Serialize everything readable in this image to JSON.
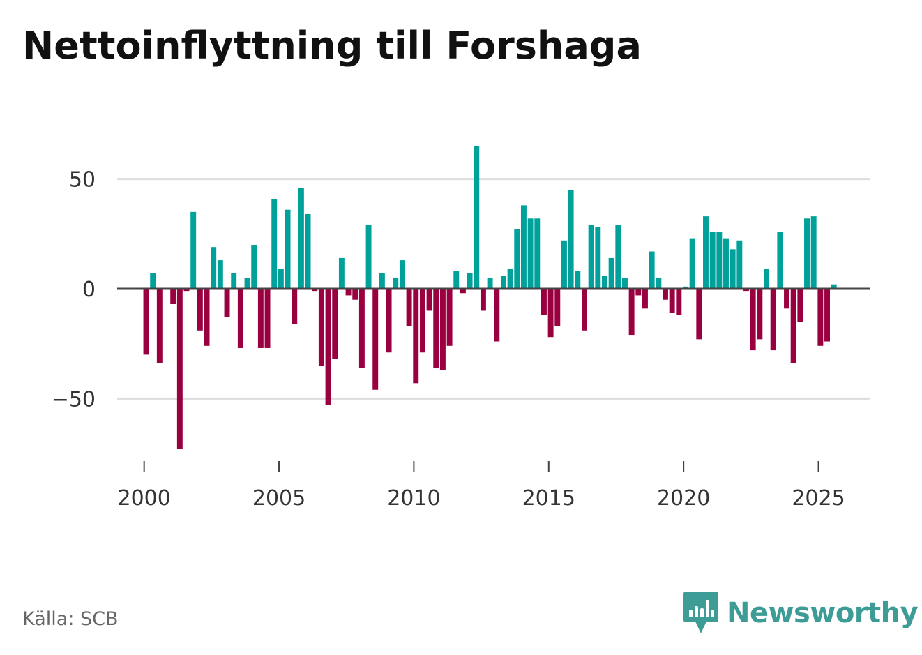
{
  "title": "Nettoinflyttning till Forshaga",
  "source": "Källa: SCB",
  "brand": {
    "name": "Newsworthy",
    "icon": "newsworthy-logo-icon",
    "color": "#3e9c97"
  },
  "colors": {
    "positive": "#00a19a",
    "negative": "#9a0040",
    "grid": "#dddddd",
    "baseline": "#444444",
    "axis_text": "#333333"
  },
  "chart_data": {
    "type": "bar",
    "title": "Nettoinflyttning till Forshaga",
    "xlabel": "",
    "ylabel": "",
    "ylim": [
      -75,
      68
    ],
    "yticks": [
      -50,
      0,
      50
    ],
    "ytick_labels": [
      "−50",
      "0",
      "50"
    ],
    "xlim": [
      1999.0,
      2026.9
    ],
    "xticks": [
      2000,
      2005,
      2010,
      2015,
      2020,
      2025
    ],
    "xtick_labels": [
      "2000",
      "2005",
      "2010",
      "2015",
      "2020",
      "2025"
    ],
    "grid": true,
    "frequency": "quarterly",
    "start": 2000.0,
    "values": [
      -30,
      7,
      -34,
      0,
      -7,
      -73,
      -1,
      35,
      -19,
      -26,
      19,
      13,
      -13,
      7,
      -27,
      5,
      20,
      -27,
      -27,
      41,
      9,
      36,
      -16,
      46,
      34,
      -1,
      -35,
      -53,
      -32,
      14,
      -3,
      -5,
      -36,
      29,
      -46,
      7,
      -29,
      5,
      13,
      -17,
      -43,
      -29,
      -10,
      -36,
      -37,
      -26,
      8,
      -2,
      7,
      65,
      -10,
      5,
      -24,
      6,
      9,
      27,
      38,
      32,
      32,
      -12,
      -22,
      -17,
      22,
      45,
      8,
      -19,
      29,
      28,
      6,
      14,
      29,
      5,
      -21,
      -3,
      -9,
      17,
      5,
      -5,
      -11,
      -12,
      1,
      23,
      -23,
      33,
      26,
      26,
      23,
      18,
      22,
      -1,
      -28,
      -23,
      9,
      -28,
      26,
      -9,
      -34,
      -15,
      32,
      33,
      -26,
      -24,
      2
    ]
  }
}
